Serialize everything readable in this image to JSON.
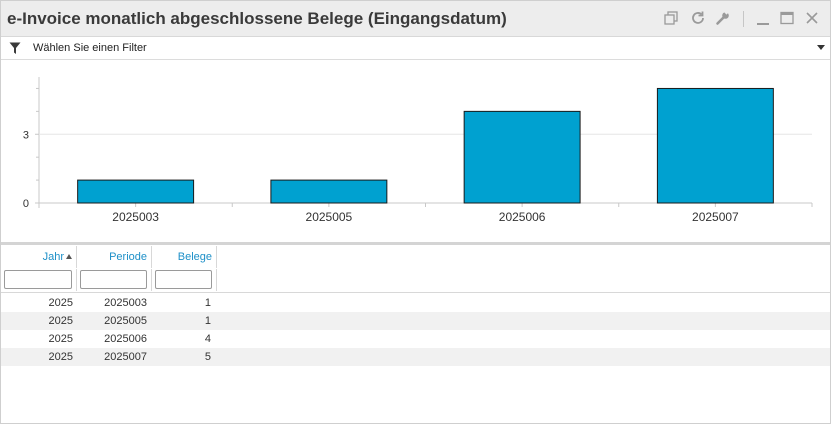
{
  "window": {
    "title": "e-Invoice monatlich abgeschlossene Belege (Eingangsdatum)",
    "toolbar_icons": [
      "copy-icon",
      "refresh-icon",
      "wrench-icon",
      "minimize-icon",
      "maximize-icon",
      "close-icon"
    ]
  },
  "filter": {
    "label": "Wählen Sie einen Filter",
    "icon": "funnel-icon"
  },
  "chart_data": {
    "type": "bar",
    "categories": [
      "2025003",
      "2025005",
      "2025006",
      "2025007"
    ],
    "values": [
      1,
      1,
      4,
      5
    ],
    "ylim": [
      0,
      5.5
    ],
    "yticks": [
      0,
      3
    ],
    "grid": true,
    "bar_color": "#00a1d0"
  },
  "table": {
    "columns": [
      {
        "label": "Jahr",
        "sorted": "asc"
      },
      {
        "label": "Periode"
      },
      {
        "label": "Belege"
      }
    ],
    "rows": [
      [
        "2025",
        "2025003",
        "1"
      ],
      [
        "2025",
        "2025005",
        "1"
      ],
      [
        "2025",
        "2025006",
        "4"
      ],
      [
        "2025",
        "2025007",
        "5"
      ]
    ],
    "header_color": "#1e90c8"
  }
}
